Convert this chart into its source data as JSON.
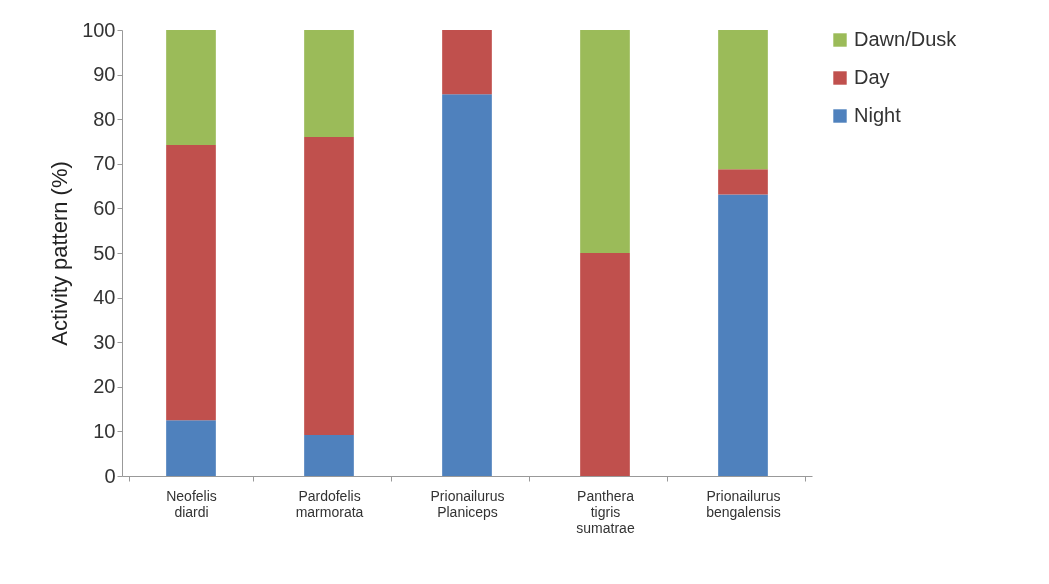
{
  "chart_data": {
    "type": "bar",
    "stacked": true,
    "ylabel": "Activity pattern (%)",
    "categories": [
      "Neofelis diardi",
      "Pardofelis marmorata",
      "Prionailurus Planiceps",
      "Panthera tigris sumatrae",
      "Prionailurus bengalensis"
    ],
    "series": [
      {
        "name": "Night",
        "color": "#4f81bd",
        "values": [
          12.5,
          9.2,
          85.6,
          0,
          63.1
        ]
      },
      {
        "name": "Day",
        "color": "#c0504d",
        "values": [
          61.7,
          66.8,
          14.4,
          50,
          5.7
        ]
      },
      {
        "name": "Dawn/Dusk",
        "color": "#9bbb59",
        "values": [
          25.8,
          24.0,
          0,
          50,
          31.2
        ]
      }
    ],
    "ylim": [
      0,
      100
    ],
    "yticks": [
      0,
      10,
      20,
      30,
      40,
      50,
      60,
      70,
      80,
      90,
      100
    ],
    "grid": false,
    "legend": "right"
  }
}
